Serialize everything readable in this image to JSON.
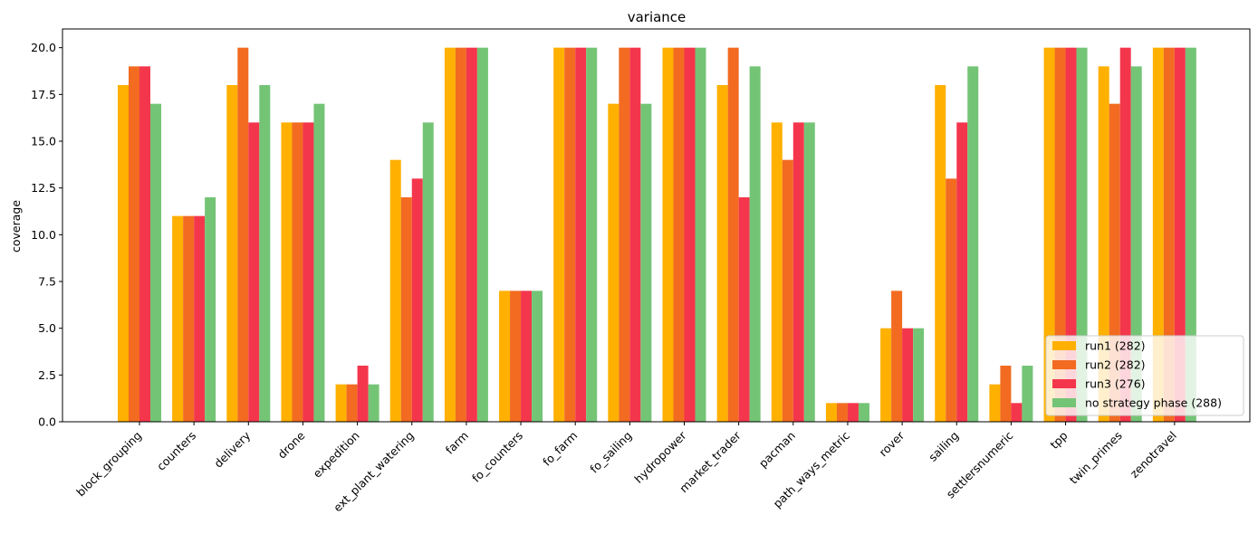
{
  "chart_data": {
    "type": "bar",
    "title": "variance",
    "xlabel": "",
    "ylabel": "coverage",
    "ylim": [
      0,
      21
    ],
    "yticks": [
      "0.0",
      "2.5",
      "5.0",
      "7.5",
      "10.0",
      "12.5",
      "15.0",
      "17.5",
      "20.0"
    ],
    "grid": false,
    "legend_position": "lower-right",
    "categories": [
      "block_grouping",
      "counters",
      "delivery",
      "drone",
      "expedition",
      "ext_plant_watering",
      "farm",
      "fo_counters",
      "fo_farm",
      "fo_sailing",
      "hydropower",
      "market_trader",
      "pacman",
      "path_ways_metric",
      "rover",
      "sailing",
      "settlersnumeric",
      "tpp",
      "twin_primes",
      "zenotravel"
    ],
    "series": [
      {
        "name": "run1 (282)",
        "color": "#FFB000",
        "values": [
          18,
          11,
          18,
          16,
          2,
          14,
          20,
          7,
          20,
          17,
          20,
          18,
          16,
          1,
          5,
          18,
          2,
          20,
          19,
          20
        ]
      },
      {
        "name": "run2 (282)",
        "color": "#F26B21",
        "values": [
          19,
          11,
          20,
          16,
          2,
          12,
          20,
          7,
          20,
          20,
          20,
          20,
          14,
          1,
          7,
          13,
          3,
          20,
          17,
          20
        ]
      },
      {
        "name": "run3 (276)",
        "color": "#F4364C",
        "values": [
          19,
          11,
          16,
          16,
          3,
          13,
          20,
          7,
          20,
          20,
          20,
          12,
          16,
          1,
          5,
          16,
          1,
          20,
          20,
          20
        ]
      },
      {
        "name": "no strategy phase (288)",
        "color": "#74C476",
        "values": [
          17,
          12,
          18,
          17,
          2,
          16,
          20,
          7,
          20,
          17,
          20,
          19,
          16,
          1,
          5,
          19,
          3,
          20,
          19,
          20
        ]
      }
    ]
  }
}
